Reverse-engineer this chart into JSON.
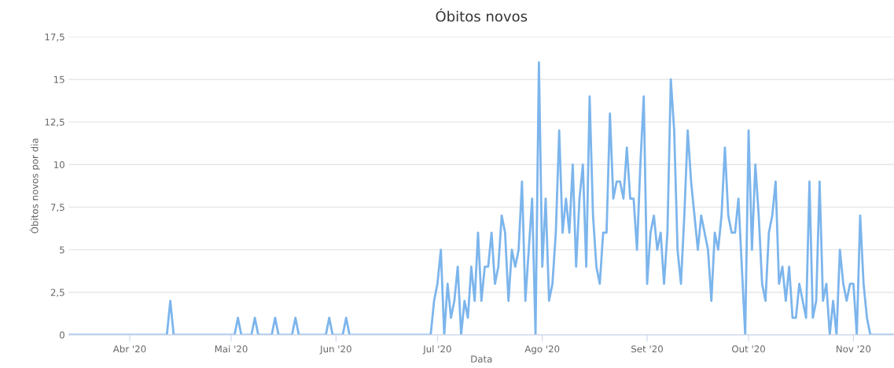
{
  "chart_data": {
    "type": "line",
    "title": "Óbitos novos",
    "xlabel": "Data",
    "ylabel": "Óbitos novos por dia",
    "grid": "y",
    "legend": false,
    "marker": "none",
    "line_style": "solid",
    "xlim": [
      "2020-03-14",
      "2020-11-13"
    ],
    "xticks": [
      {
        "value": "2020-04-01",
        "label": "Abr '20"
      },
      {
        "value": "2020-05-01",
        "label": "Mai '20"
      },
      {
        "value": "2020-06-01",
        "label": "Jun '20"
      },
      {
        "value": "2020-07-01",
        "label": "Jul '20"
      },
      {
        "value": "2020-08-01",
        "label": "Ago '20"
      },
      {
        "value": "2020-09-01",
        "label": "Set '20"
      },
      {
        "value": "2020-10-01",
        "label": "Out '20"
      },
      {
        "value": "2020-11-01",
        "label": "Nov '20"
      }
    ],
    "ylim": [
      0,
      17.5
    ],
    "yticks": [
      0,
      {
        "value": 2.5,
        "label": "2,5"
      },
      5,
      {
        "value": 7.5,
        "label": "7,5"
      },
      10,
      {
        "value": 12.5,
        "label": "12,5"
      },
      15,
      {
        "value": 17.5,
        "label": "17,5"
      }
    ],
    "series": [
      {
        "color": "#7cb5ec",
        "x": [
          "2020-03-14",
          "2020-04-12",
          "2020-04-13",
          "2020-04-14",
          "2020-05-02",
          "2020-05-03",
          "2020-05-04",
          "2020-05-07",
          "2020-05-08",
          "2020-05-09",
          "2020-05-13",
          "2020-05-14",
          "2020-05-15",
          "2020-05-19",
          "2020-05-20",
          "2020-05-21",
          "2020-05-29",
          "2020-05-30",
          "2020-05-31",
          "2020-06-03",
          "2020-06-04",
          "2020-06-05",
          "2020-06-29",
          "2020-06-30",
          "2020-07-01",
          "2020-07-02",
          "2020-07-03",
          "2020-07-04",
          "2020-07-05",
          "2020-07-06",
          "2020-07-07",
          "2020-07-08",
          "2020-07-09",
          "2020-07-10",
          "2020-07-11",
          "2020-07-12",
          "2020-07-13",
          "2020-07-14",
          "2020-07-15",
          "2020-07-16",
          "2020-07-17",
          "2020-07-18",
          "2020-07-19",
          "2020-07-20",
          "2020-07-21",
          "2020-07-22",
          "2020-07-23",
          "2020-07-24",
          "2020-07-25",
          "2020-07-26",
          "2020-07-27",
          "2020-07-28",
          "2020-07-29",
          "2020-07-30",
          "2020-07-31",
          "2020-08-01",
          "2020-08-02",
          "2020-08-03",
          "2020-08-04",
          "2020-08-05",
          "2020-08-06",
          "2020-08-07",
          "2020-08-08",
          "2020-08-09",
          "2020-08-10",
          "2020-08-11",
          "2020-08-12",
          "2020-08-13",
          "2020-08-14",
          "2020-08-15",
          "2020-08-16",
          "2020-08-17",
          "2020-08-18",
          "2020-08-19",
          "2020-08-20",
          "2020-08-21",
          "2020-08-22",
          "2020-08-23",
          "2020-08-24",
          "2020-08-25",
          "2020-08-26",
          "2020-08-27",
          "2020-08-28",
          "2020-08-29",
          "2020-08-30",
          "2020-08-31",
          "2020-09-01",
          "2020-09-02",
          "2020-09-03",
          "2020-09-04",
          "2020-09-05",
          "2020-09-06",
          "2020-09-07",
          "2020-09-08",
          "2020-09-09",
          "2020-09-10",
          "2020-09-11",
          "2020-09-12",
          "2020-09-13",
          "2020-09-14",
          "2020-09-15",
          "2020-09-16",
          "2020-09-17",
          "2020-09-18",
          "2020-09-19",
          "2020-09-20",
          "2020-09-21",
          "2020-09-22",
          "2020-09-23",
          "2020-09-24",
          "2020-09-25",
          "2020-09-26",
          "2020-09-27",
          "2020-09-28",
          "2020-09-29",
          "2020-09-30",
          "2020-10-01",
          "2020-10-02",
          "2020-10-03",
          "2020-10-04",
          "2020-10-05",
          "2020-10-06",
          "2020-10-07",
          "2020-10-08",
          "2020-10-09",
          "2020-10-10",
          "2020-10-11",
          "2020-10-12",
          "2020-10-13",
          "2020-10-14",
          "2020-10-15",
          "2020-10-16",
          "2020-10-17",
          "2020-10-18",
          "2020-10-19",
          "2020-10-20",
          "2020-10-21",
          "2020-10-22",
          "2020-10-23",
          "2020-10-24",
          "2020-10-25",
          "2020-10-26",
          "2020-10-27",
          "2020-10-28",
          "2020-10-29",
          "2020-10-30",
          "2020-10-31",
          "2020-11-01",
          "2020-11-02",
          "2020-11-03",
          "2020-11-04",
          "2020-11-05",
          "2020-11-06",
          "2020-11-13"
        ],
        "values": [
          0,
          0,
          2,
          0,
          0,
          1,
          0,
          0,
          1,
          0,
          0,
          1,
          0,
          0,
          1,
          0,
          0,
          1,
          0,
          0,
          1,
          0,
          0,
          2,
          3,
          5,
          0,
          3,
          1,
          2,
          4,
          0,
          2,
          1,
          4,
          2,
          6,
          2,
          4,
          4,
          6,
          3,
          4,
          7,
          6,
          2,
          5,
          4,
          5,
          9,
          2,
          5,
          8,
          0,
          16,
          4,
          8,
          2,
          3,
          6,
          12,
          6,
          8,
          6,
          10,
          4,
          8,
          10,
          4,
          14,
          7,
          4,
          3,
          6,
          6,
          13,
          8,
          9,
          9,
          8,
          11,
          8,
          8,
          5,
          10,
          14,
          3,
          6,
          7,
          5,
          6,
          3,
          6,
          15,
          12,
          5,
          3,
          7,
          12,
          9,
          7,
          5,
          7,
          6,
          5,
          2,
          6,
          5,
          7,
          11,
          7,
          6,
          6,
          8,
          4,
          0,
          12,
          5,
          10,
          7,
          3,
          2,
          6,
          7,
          9,
          3,
          4,
          2,
          4,
          1,
          1,
          3,
          2,
          1,
          9,
          1,
          2,
          9,
          2,
          3,
          0,
          2,
          0,
          5,
          3,
          2,
          3,
          3,
          0,
          7,
          3,
          1,
          0,
          0
        ]
      }
    ]
  }
}
